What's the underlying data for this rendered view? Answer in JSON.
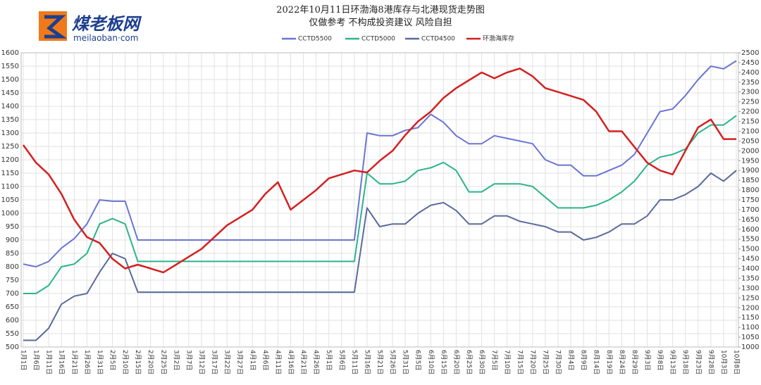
{
  "logo": {
    "name": "煤老板网",
    "domain": "meilaoban·com"
  },
  "chart_data": {
    "type": "line",
    "title": "2022年10月11日环渤海8港库存与北港现货走势图",
    "subtitle": "仅做参考 不构成投资建议 风险自担",
    "categories": [
      "1月1日",
      "1月6日",
      "1月11日",
      "1月16日",
      "1月21日",
      "1月26日",
      "1月31日",
      "2月5日",
      "2月10日",
      "2月15日",
      "2月20日",
      "2月25日",
      "3月2日",
      "3月7日",
      "3月12日",
      "3月17日",
      "3月22日",
      "3月27日",
      "4月1日",
      "4月6日",
      "4月11日",
      "4月16日",
      "4月21日",
      "4月26日",
      "5月1日",
      "5月6日",
      "5月11日",
      "5月16日",
      "5月21日",
      "5月26日",
      "5月31日",
      "6月5日",
      "6月10日",
      "6月15日",
      "6月20日",
      "6月25日",
      "6月30日",
      "7月5日",
      "7月10日",
      "7月15日",
      "7月20日",
      "7月25日",
      "7月30日",
      "8月4日",
      "8月9日",
      "8月14日",
      "8月19日",
      "8月24日",
      "8月29日",
      "9月3日",
      "9月8日",
      "9月13日",
      "9月18日",
      "9月23日",
      "9月28日",
      "10月3日",
      "10月8日"
    ],
    "series": [
      {
        "name": "CCTD5500",
        "color": "#6a74d4",
        "values": [
          810,
          800,
          820,
          870,
          905,
          960,
          1050,
          1045,
          1045,
          900,
          900,
          900,
          900,
          900,
          900,
          900,
          900,
          900,
          900,
          900,
          900,
          900,
          900,
          900,
          900,
          900,
          900,
          1300,
          1290,
          1290,
          1310,
          1320,
          1370,
          1340,
          1290,
          1260,
          1260,
          1290,
          1280,
          1270,
          1260,
          1200,
          1180,
          1180,
          1140,
          1140,
          1160,
          1180,
          1220,
          1300,
          1380,
          1390,
          1440,
          1500,
          1550,
          1540,
          1570
        ]
      },
      {
        "name": "CCTD5000",
        "color": "#2bb48a",
        "values": [
          700,
          700,
          730,
          800,
          810,
          850,
          960,
          980,
          960,
          820,
          820,
          820,
          820,
          820,
          820,
          820,
          820,
          820,
          820,
          820,
          820,
          820,
          820,
          820,
          820,
          820,
          820,
          1150,
          1110,
          1110,
          1120,
          1160,
          1170,
          1190,
          1160,
          1080,
          1080,
          1110,
          1110,
          1110,
          1100,
          1060,
          1020,
          1020,
          1020,
          1030,
          1050,
          1080,
          1120,
          1180,
          1210,
          1220,
          1240,
          1300,
          1330,
          1330,
          1365
        ]
      },
      {
        "name": "CCTD4500",
        "color": "#5a6a9c",
        "values": [
          525,
          525,
          570,
          660,
          690,
          700,
          780,
          850,
          830,
          705,
          705,
          705,
          705,
          705,
          705,
          705,
          705,
          705,
          705,
          705,
          705,
          705,
          705,
          705,
          705,
          705,
          705,
          1020,
          950,
          960,
          960,
          1000,
          1030,
          1040,
          1010,
          960,
          960,
          990,
          990,
          970,
          960,
          950,
          930,
          930,
          900,
          910,
          930,
          960,
          960,
          990,
          1050,
          1050,
          1070,
          1100,
          1150,
          1120,
          1160
        ]
      },
      {
        "name": "环渤海库存",
        "color": "#d42020",
        "axis": "y2",
        "values": [
          2030,
          1940,
          1880,
          1780,
          1650,
          1560,
          1530,
          1450,
          1400,
          1420,
          1400,
          1380,
          1420,
          1460,
          1500,
          1560,
          1620,
          1660,
          1700,
          1780,
          1840,
          1700,
          1750,
          1800,
          1860,
          1880,
          1900,
          1890,
          1950,
          2000,
          2080,
          2150,
          2200,
          2270,
          2320,
          2360,
          2400,
          2370,
          2400,
          2420,
          2380,
          2320,
          2300,
          2280,
          2260,
          2200,
          2100,
          2100,
          2020,
          1940,
          1900,
          1880,
          2000,
          2120,
          2160,
          2060,
          2060
        ]
      }
    ],
    "ylim": [
      500,
      1600
    ],
    "yticks": [
      500,
      550,
      600,
      650,
      700,
      750,
      800,
      850,
      900,
      950,
      1000,
      1050,
      1100,
      1150,
      1200,
      1250,
      1300,
      1350,
      1400,
      1450,
      1500,
      1550,
      1600
    ],
    "y2lim": [
      1000,
      2500
    ],
    "y2ticks": [
      1000,
      1050,
      1100,
      1150,
      1200,
      1250,
      1300,
      1350,
      1400,
      1450,
      1500,
      1550,
      1600,
      1650,
      1700,
      1750,
      1800,
      1850,
      1900,
      1950,
      2000,
      2050,
      2100,
      2150,
      2200,
      2250,
      2300,
      2350,
      2400,
      2450,
      2500
    ],
    "grid": true,
    "legend": "top"
  }
}
